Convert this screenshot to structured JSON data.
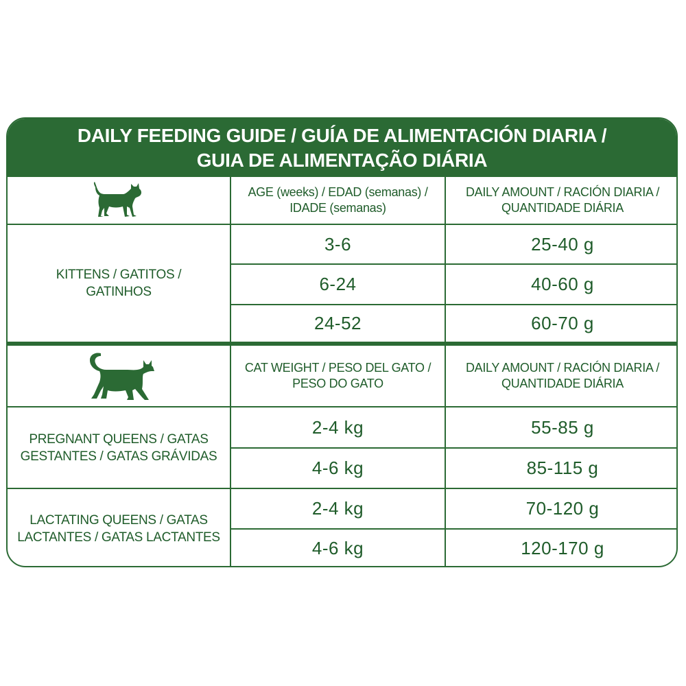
{
  "title": {
    "line1": "DAILY FEEDING GUIDE / GUÍA DE ALIMENTACIÓN DIARIA /",
    "line2": "GUIA DE ALIMENTAÇÃO DIÁRIA"
  },
  "kittens_section": {
    "icon": "kitten-icon",
    "age_header_line1": "AGE (weeks) / EDAD (semanas) /",
    "age_header_line2": "IDADE (semanas)",
    "amount_header_line1": "DAILY AMOUNT / RACIÓN DIARIA /",
    "amount_header_line2": "QUANTIDADE DIÁRIA",
    "label_line1": "KITTENS / GATITOS /",
    "label_line2": "GATINHOS",
    "rows": [
      {
        "age": "3-6",
        "amount": "25-40 g"
      },
      {
        "age": "6-24",
        "amount": "40-60 g"
      },
      {
        "age": "24-52",
        "amount": "60-70 g"
      }
    ]
  },
  "adults_section": {
    "icon": "cat-icon",
    "weight_header_line1": "CAT WEIGHT / PESO DEL GATO /",
    "weight_header_line2": "PESO DO GATO",
    "amount_header_line1": "DAILY AMOUNT / RACIÓN DIARIA /",
    "amount_header_line2": "QUANTIDADE DIÁRIA",
    "pregnant": {
      "label_line1": "PREGNANT QUEENS / GATAS",
      "label_line2": "GESTANTES / GATAS GRÁVIDAS",
      "rows": [
        {
          "weight": "2-4 kg",
          "amount": "55-85 g"
        },
        {
          "weight": "4-6 kg",
          "amount": "85-115 g"
        }
      ]
    },
    "lactating": {
      "label_line1": "LACTATING QUEENS / GATAS",
      "label_line2": "LACTANTES / GATAS LACTANTES",
      "rows": [
        {
          "weight": "2-4 kg",
          "amount": "70-120 g"
        },
        {
          "weight": "4-6 kg",
          "amount": "120-170 g"
        }
      ]
    }
  },
  "colors": {
    "brand_green": "#2b6a34",
    "text_green": "#1f5c2a",
    "background": "#ffffff"
  }
}
